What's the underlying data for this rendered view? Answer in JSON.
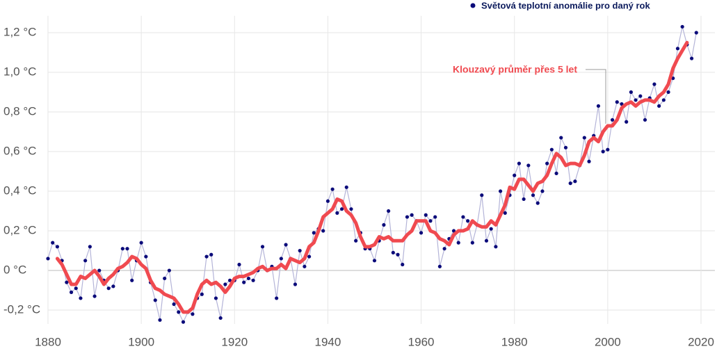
{
  "chart_data": {
    "type": "line",
    "x": [
      1880,
      1881,
      1882,
      1883,
      1884,
      1885,
      1886,
      1887,
      1888,
      1889,
      1890,
      1891,
      1892,
      1893,
      1894,
      1895,
      1896,
      1897,
      1898,
      1899,
      1900,
      1901,
      1902,
      1903,
      1904,
      1905,
      1906,
      1907,
      1908,
      1909,
      1910,
      1911,
      1912,
      1913,
      1914,
      1915,
      1916,
      1917,
      1918,
      1919,
      1920,
      1921,
      1922,
      1923,
      1924,
      1925,
      1926,
      1927,
      1928,
      1929,
      1930,
      1931,
      1932,
      1933,
      1934,
      1935,
      1936,
      1937,
      1938,
      1939,
      1940,
      1941,
      1942,
      1943,
      1944,
      1945,
      1946,
      1947,
      1948,
      1949,
      1950,
      1951,
      1952,
      1953,
      1954,
      1955,
      1956,
      1957,
      1958,
      1959,
      1960,
      1961,
      1962,
      1963,
      1964,
      1965,
      1966,
      1967,
      1968,
      1969,
      1970,
      1971,
      1972,
      1973,
      1974,
      1975,
      1976,
      1977,
      1978,
      1979,
      1980,
      1981,
      1982,
      1983,
      1984,
      1985,
      1986,
      1987,
      1988,
      1989,
      1990,
      1991,
      1992,
      1993,
      1994,
      1995,
      1996,
      1997,
      1998,
      1999,
      2000,
      2001,
      2002,
      2003,
      2004,
      2005,
      2006,
      2007,
      2008,
      2009,
      2010,
      2011,
      2012,
      2013,
      2014,
      2015,
      2016,
      2017,
      2018,
      2019
    ],
    "series": [
      {
        "name": "Světová teplotní anomálie pro daný rok",
        "color": "#0b0b7a",
        "line_color": "#b4b4d8",
        "values": [
          0.06,
          0.14,
          0.12,
          0.05,
          -0.06,
          -0.11,
          -0.09,
          -0.14,
          0.05,
          0.12,
          -0.13,
          0.0,
          -0.05,
          -0.09,
          -0.08,
          0.0,
          0.11,
          0.11,
          -0.05,
          0.05,
          0.14,
          0.07,
          -0.06,
          -0.15,
          -0.25,
          -0.04,
          0.0,
          -0.17,
          -0.21,
          -0.26,
          -0.21,
          -0.22,
          -0.14,
          -0.12,
          0.07,
          0.08,
          -0.14,
          -0.24,
          -0.07,
          -0.05,
          -0.05,
          0.03,
          -0.06,
          -0.04,
          -0.05,
          0.0,
          0.12,
          0.0,
          0.02,
          -0.14,
          0.06,
          0.13,
          0.06,
          -0.07,
          0.1,
          0.02,
          0.07,
          0.19,
          0.21,
          0.2,
          0.35,
          0.41,
          0.29,
          0.31,
          0.42,
          0.31,
          0.15,
          0.19,
          0.11,
          0.11,
          0.05,
          0.15,
          0.23,
          0.3,
          0.09,
          0.08,
          0.03,
          0.27,
          0.28,
          0.25,
          0.19,
          0.28,
          0.25,
          0.27,
          0.02,
          0.11,
          0.16,
          0.2,
          0.14,
          0.27,
          0.25,
          0.14,
          0.23,
          0.38,
          0.15,
          0.21,
          0.12,
          0.4,
          0.29,
          0.38,
          0.48,
          0.54,
          0.36,
          0.53,
          0.38,
          0.34,
          0.4,
          0.54,
          0.61,
          0.49,
          0.67,
          0.62,
          0.44,
          0.45,
          0.53,
          0.67,
          0.55,
          0.68,
          0.83,
          0.6,
          0.61,
          0.76,
          0.85,
          0.84,
          0.75,
          0.9,
          0.86,
          0.88,
          0.76,
          0.87,
          0.94,
          0.83,
          0.86,
          0.9,
          0.97,
          1.12,
          1.23,
          1.14,
          1.07,
          1.2
        ]
      },
      {
        "name": "Klouzavý průměr přes 5 let",
        "color": "#f04a50",
        "values": [
          null,
          null,
          0.06,
          0.03,
          -0.02,
          -0.07,
          -0.07,
          -0.03,
          -0.04,
          -0.02,
          0.0,
          -0.03,
          -0.07,
          -0.04,
          -0.02,
          0.01,
          0.02,
          0.04,
          0.07,
          0.06,
          0.03,
          0.01,
          -0.05,
          -0.09,
          -0.1,
          -0.12,
          -0.13,
          -0.14,
          -0.17,
          -0.21,
          -0.21,
          -0.19,
          -0.12,
          -0.07,
          -0.05,
          -0.07,
          -0.06,
          -0.08,
          -0.11,
          -0.08,
          -0.04,
          -0.03,
          -0.03,
          -0.02,
          -0.01,
          0.01,
          0.02,
          0.0,
          0.01,
          0.01,
          0.03,
          0.01,
          0.06,
          0.05,
          0.04,
          0.06,
          0.12,
          0.14,
          0.2,
          0.27,
          0.29,
          0.31,
          0.36,
          0.35,
          0.3,
          0.28,
          0.24,
          0.17,
          0.12,
          0.12,
          0.13,
          0.17,
          0.16,
          0.17,
          0.15,
          0.15,
          0.15,
          0.18,
          0.2,
          0.25,
          0.25,
          0.25,
          0.2,
          0.19,
          0.16,
          0.15,
          0.13,
          0.18,
          0.2,
          0.2,
          0.21,
          0.25,
          0.23,
          0.22,
          0.22,
          0.25,
          0.23,
          0.28,
          0.33,
          0.42,
          0.41,
          0.46,
          0.46,
          0.43,
          0.4,
          0.44,
          0.45,
          0.48,
          0.54,
          0.59,
          0.57,
          0.53,
          0.54,
          0.54,
          0.53,
          0.58,
          0.65,
          0.67,
          0.65,
          0.7,
          0.73,
          0.73,
          0.76,
          0.82,
          0.84,
          0.85,
          0.83,
          0.85,
          0.86,
          0.86,
          0.85,
          0.88,
          0.9,
          0.94,
          1.02,
          1.07,
          1.11,
          1.15,
          null,
          null
        ]
      }
    ],
    "xlim": [
      1880,
      2020
    ],
    "xticks": [
      1880,
      1900,
      1920,
      1940,
      1960,
      1980,
      2000,
      2020
    ],
    "ylim": [
      -0.27,
      1.25
    ],
    "yticks": [
      {
        "value": -0.2,
        "label": "-0,2 °C"
      },
      {
        "value": 0,
        "label": "0 °C"
      },
      {
        "value": 0.2,
        "label": "0,2 °C"
      },
      {
        "value": 0.4,
        "label": "0,4 °C"
      },
      {
        "value": 0.6,
        "label": "0,6 °C"
      },
      {
        "value": 0.8,
        "label": "0,8 °C"
      },
      {
        "value": 1.0,
        "label": "1,0 °C"
      },
      {
        "value": 1.2,
        "label": "1,2 °C"
      }
    ],
    "grid": true,
    "legend": "top-right"
  }
}
